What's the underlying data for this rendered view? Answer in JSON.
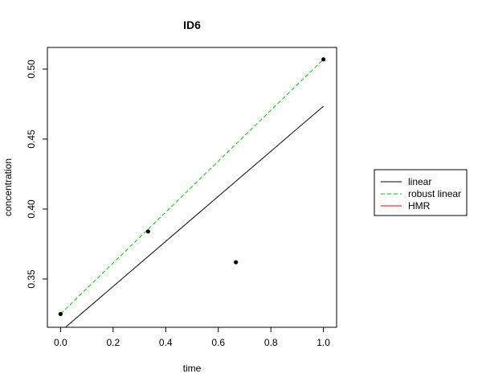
{
  "chart_data": {
    "type": "scatter",
    "title": "ID6",
    "xlabel": "time",
    "ylabel": "concentration",
    "xlim": [
      -0.05,
      1.05
    ],
    "ylim": [
      0.3155,
      0.5155
    ],
    "x_ticks": [
      0.0,
      0.2,
      0.4,
      0.6,
      0.8,
      1.0
    ],
    "x_tick_labels": [
      "0.0",
      "0.2",
      "0.4",
      "0.6",
      "0.8",
      "1.0"
    ],
    "y_ticks": [
      0.35,
      0.4,
      0.45,
      0.5
    ],
    "y_tick_labels": [
      "0.35",
      "0.40",
      "0.45",
      "0.50"
    ],
    "grid": false,
    "legend_position": "right",
    "points": {
      "x": [
        0.0,
        0.333,
        0.667,
        1.0
      ],
      "y": [
        0.325,
        0.384,
        0.362,
        0.507
      ]
    },
    "series": [
      {
        "name": "linear",
        "color": "#000000",
        "dash": "solid",
        "x": [
          0.0,
          1.0
        ],
        "y": [
          0.3125,
          0.4735
        ]
      },
      {
        "name": "robust linear",
        "color": "#00cc00",
        "dash": "dashed",
        "x": [
          0.0,
          1.0
        ],
        "y": [
          0.325,
          0.507
        ]
      },
      {
        "name": "HMR",
        "color": "#ff0000",
        "dash": "solid",
        "x": [],
        "y": []
      }
    ]
  }
}
